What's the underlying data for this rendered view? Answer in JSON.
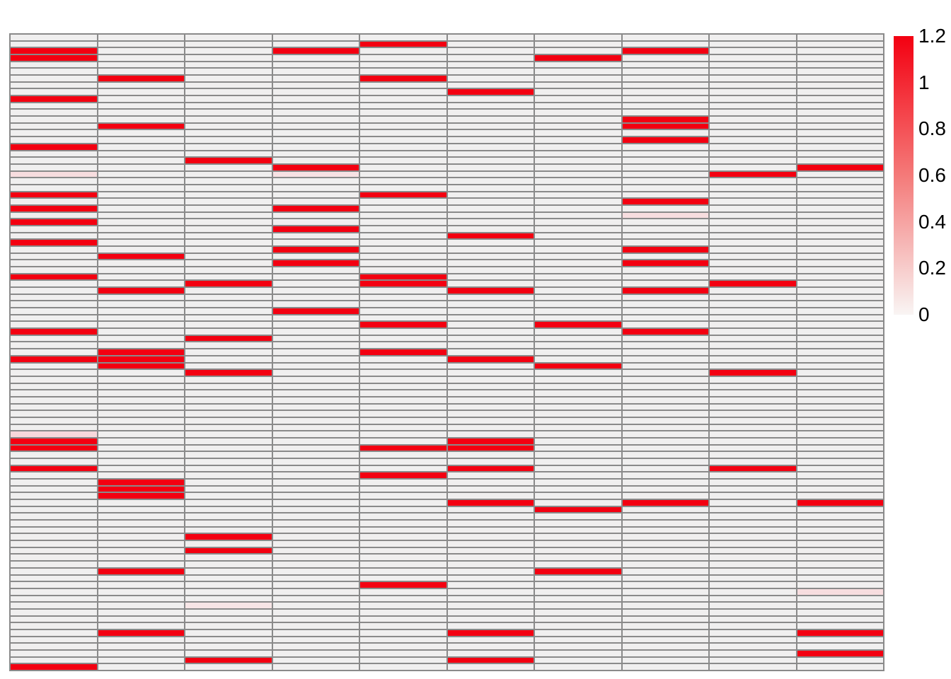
{
  "chart_data": {
    "type": "heatmap",
    "title": "",
    "xlabel": "",
    "ylabel": "",
    "grid": {
      "rows": 93,
      "cols": 10
    },
    "legend_position": "right",
    "axes_labels_visible": false,
    "colorbar": {
      "min": 0,
      "max": 1.2,
      "tick_values": [
        1.2,
        1,
        0.8,
        0.6,
        0.4,
        0.2,
        0
      ],
      "tick_labels": [
        "1.2",
        "1",
        "0.8",
        "0.6",
        "0.4",
        "0.2",
        "0"
      ]
    },
    "colors": {
      "high": "#F30011",
      "low": "#F7F6F6",
      "cell_background": "#F0EFEF",
      "gridline": "#8A8A8A",
      "page_background": "#FFFFFF"
    },
    "cells_format": "[row 1-93 top-down, col 1-10 left-right, value 0-1.2]",
    "cells": [
      [
        2,
        5,
        1
      ],
      [
        3,
        1,
        1
      ],
      [
        3,
        4,
        1
      ],
      [
        3,
        8,
        1
      ],
      [
        4,
        1,
        1
      ],
      [
        4,
        7,
        1
      ],
      [
        7,
        2,
        1
      ],
      [
        7,
        5,
        1
      ],
      [
        9,
        6,
        1
      ],
      [
        10,
        1,
        1
      ],
      [
        13,
        8,
        1
      ],
      [
        14,
        2,
        1
      ],
      [
        14,
        8,
        1
      ],
      [
        16,
        8,
        1
      ],
      [
        17,
        1,
        1
      ],
      [
        19,
        3,
        1
      ],
      [
        20,
        4,
        1
      ],
      [
        20,
        10,
        1
      ],
      [
        21,
        1,
        0.1
      ],
      [
        21,
        4,
        0.08
      ],
      [
        21,
        9,
        1
      ],
      [
        24,
        1,
        1
      ],
      [
        24,
        5,
        1
      ],
      [
        25,
        8,
        1
      ],
      [
        26,
        1,
        1
      ],
      [
        26,
        4,
        1
      ],
      [
        27,
        8,
        0.1
      ],
      [
        28,
        1,
        1
      ],
      [
        29,
        4,
        1
      ],
      [
        30,
        6,
        1
      ],
      [
        31,
        1,
        1
      ],
      [
        32,
        4,
        1
      ],
      [
        32,
        8,
        1
      ],
      [
        33,
        2,
        1
      ],
      [
        34,
        4,
        1
      ],
      [
        34,
        8,
        1
      ],
      [
        36,
        1,
        1
      ],
      [
        36,
        5,
        1
      ],
      [
        37,
        3,
        1
      ],
      [
        37,
        5,
        1
      ],
      [
        37,
        9,
        1
      ],
      [
        38,
        2,
        1
      ],
      [
        38,
        6,
        1
      ],
      [
        38,
        8,
        1
      ],
      [
        41,
        4,
        1
      ],
      [
        43,
        5,
        1
      ],
      [
        43,
        7,
        1
      ],
      [
        44,
        1,
        1
      ],
      [
        44,
        8,
        1
      ],
      [
        45,
        3,
        1
      ],
      [
        47,
        2,
        1
      ],
      [
        47,
        5,
        1
      ],
      [
        48,
        1,
        1
      ],
      [
        48,
        2,
        1
      ],
      [
        48,
        6,
        1
      ],
      [
        49,
        2,
        1
      ],
      [
        49,
        7,
        1
      ],
      [
        50,
        3,
        1
      ],
      [
        50,
        9,
        1
      ],
      [
        59,
        1,
        0.12
      ],
      [
        60,
        1,
        1
      ],
      [
        60,
        6,
        1
      ],
      [
        61,
        1,
        1
      ],
      [
        61,
        5,
        1
      ],
      [
        61,
        6,
        1
      ],
      [
        64,
        1,
        1
      ],
      [
        64,
        6,
        1
      ],
      [
        64,
        9,
        1
      ],
      [
        65,
        5,
        1
      ],
      [
        66,
        2,
        1
      ],
      [
        67,
        2,
        1
      ],
      [
        68,
        2,
        1
      ],
      [
        69,
        6,
        1
      ],
      [
        69,
        8,
        1
      ],
      [
        69,
        10,
        1
      ],
      [
        70,
        7,
        1
      ],
      [
        74,
        3,
        1
      ],
      [
        76,
        3,
        1
      ],
      [
        79,
        2,
        1
      ],
      [
        79,
        7,
        1
      ],
      [
        81,
        5,
        1
      ],
      [
        82,
        10,
        0.1
      ],
      [
        84,
        3,
        0.07
      ],
      [
        88,
        2,
        1
      ],
      [
        88,
        6,
        1
      ],
      [
        88,
        10,
        1
      ],
      [
        91,
        10,
        1
      ],
      [
        92,
        3,
        1
      ],
      [
        92,
        6,
        1
      ],
      [
        93,
        1,
        1
      ]
    ]
  }
}
